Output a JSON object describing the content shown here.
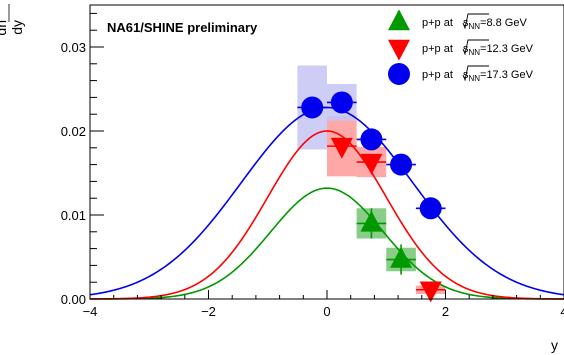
{
  "chart_data": {
    "type": "scatter",
    "title": "NA61/SHINE preliminary",
    "xlabel": "y",
    "ylabel_top": "dn",
    "ylabel_bottom": "dy",
    "xlim": [
      -4,
      4
    ],
    "ylim": [
      0,
      0.035
    ],
    "x_ticks": [
      -4,
      -2,
      0,
      2,
      4
    ],
    "x_tick_labels": [
      "−4",
      "−2",
      "0",
      "2",
      "4"
    ],
    "y_ticks": [
      0,
      0.01,
      0.02,
      0.03
    ],
    "y_tick_labels": [
      "0.00",
      "0.01",
      "0.02",
      "0.03"
    ],
    "grid": false,
    "legend_position": "top-right",
    "series": [
      {
        "name_prefix": "p+p at ",
        "name_suffix": "=8.8 GeV",
        "marker": "triangle-up",
        "color": "#009900",
        "box_color": "#74c474",
        "x": [
          0.75,
          1.25
        ],
        "y": [
          0.009,
          0.0047
        ],
        "yerr": [
          0.0018,
          0.0018
        ],
        "sys_x": [
          0.25,
          0.25
        ],
        "sys_y": [
          0.0018,
          0.0014
        ],
        "fit": {
          "amplitude": 0.0132,
          "sigma": 0.95
        }
      },
      {
        "name_prefix": "p+p at ",
        "name_suffix": "=12.3 GeV",
        "marker": "triangle-down",
        "color": "#ff0000",
        "box_color": "#ff9999",
        "x": [
          0.25,
          0.75,
          1.75
        ],
        "y": [
          0.0182,
          0.0163,
          0.0011
        ],
        "yerr": [
          0.0009,
          0.0009,
          0.0007
        ],
        "sys_x": [
          0.25,
          0.25,
          0.25
        ],
        "sys_y": [
          0.0036,
          0.0018,
          0.0005
        ],
        "fit": {
          "amplitude": 0.02,
          "sigma": 1.0
        }
      },
      {
        "name_prefix": "p+p at ",
        "name_suffix": "=17.3 GeV",
        "marker": "circle",
        "color": "#0000ee",
        "box_color": "#c4c4f5",
        "x": [
          -0.25,
          0.25,
          0.75,
          1.25,
          1.75
        ],
        "y": [
          0.0228,
          0.0234,
          0.019,
          0.016,
          0.0108
        ],
        "yerr": [
          0.0005,
          0.0005,
          0.0005,
          0.0005,
          0.0005
        ],
        "sys_x": [
          0.25,
          0.25,
          0.1,
          0.1,
          0.1
        ],
        "sys_y": [
          0.005,
          0.0022,
          0.0006,
          0.0006,
          0.0006
        ],
        "fit": {
          "amplitude": 0.0228,
          "sigma": 1.45
        }
      }
    ],
    "sqrt_label": "s",
    "sqrt_sub": "NN"
  }
}
